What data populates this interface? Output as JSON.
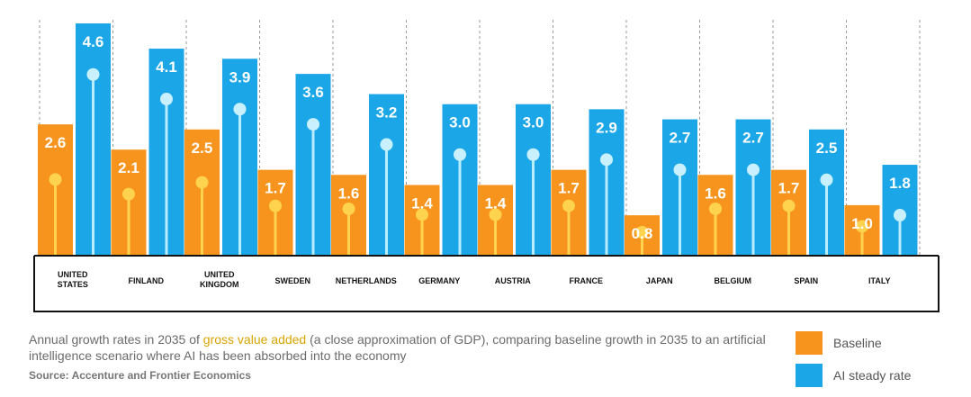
{
  "chart_data": {
    "type": "bar",
    "categories": [
      [
        "UNITED",
        "STATES"
      ],
      [
        "FINLAND"
      ],
      [
        "UNITED",
        "KINGDOM"
      ],
      [
        "SWEDEN"
      ],
      [
        "NETHERLANDS"
      ],
      [
        "GERMANY"
      ],
      [
        "AUSTRIA"
      ],
      [
        "FRANCE"
      ],
      [
        "JAPAN"
      ],
      [
        "BELGIUM"
      ],
      [
        "SPAIN"
      ],
      [
        "ITALY"
      ]
    ],
    "series": [
      {
        "name": "Baseline",
        "color": "#f7941d",
        "values": [
          2.6,
          2.1,
          2.5,
          1.7,
          1.6,
          1.4,
          1.4,
          1.7,
          0.8,
          1.6,
          1.7,
          1.0
        ]
      },
      {
        "name": "AI steady rate",
        "color": "#1ba6e8",
        "values": [
          4.6,
          4.1,
          3.9,
          3.6,
          3.2,
          3.0,
          3.0,
          2.9,
          2.7,
          2.7,
          2.5,
          1.8
        ]
      }
    ],
    "value_labels": [
      [
        "2.6",
        "2.1",
        "2.5",
        "1.7",
        "1.6",
        "1.4",
        "1.4",
        "1.7",
        "0.8",
        "1.6",
        "1.7",
        "1.0"
      ],
      [
        "4.6",
        "4.1",
        "3.9",
        "3.6",
        "3.2",
        "3.0",
        "3.0",
        "2.9",
        "2.7",
        "2.7",
        "2.5",
        "1.8"
      ]
    ],
    "ylim": [
      0,
      4.6
    ],
    "grid": "dashed vertical separators",
    "legend_position": "bottom-right"
  },
  "caption": {
    "before": "Annual growth rates in 2035 of ",
    "highlight": "gross value added",
    "after": " (a close approximation of GDP), comparing baseline growth in 2035 to an artificial intelligence scenario where AI has been absorbed into the economy"
  },
  "source": "Source: Accenture and Frontier Economics",
  "legend": [
    {
      "label": "Baseline",
      "color": "#f7941d"
    },
    {
      "label": "AI steady rate",
      "color": "#1ba6e8"
    }
  ]
}
